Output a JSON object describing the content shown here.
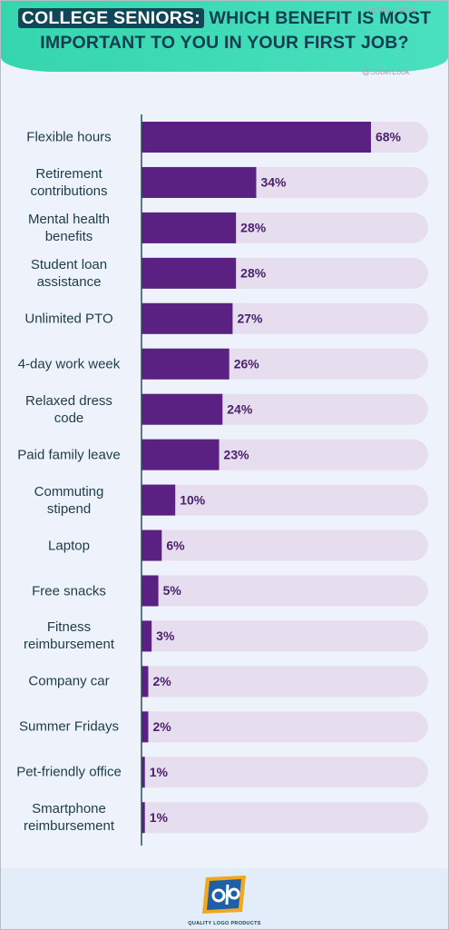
{
  "chart_data": {
    "type": "bar",
    "orientation": "horizontal",
    "title_highlight": "COLLEGE SENIORS:",
    "title": "WHICH BENEFIT IS MOST IMPORTANT TO YOU IN YOUR FIRST JOB?",
    "watermark": [
      "The Daily Shot",
      "@SoberLook"
    ],
    "brand": "QUALITY LOGO PRODUCTS",
    "categories": [
      "Flexible hours",
      "Retirement\ncontributions",
      "Mental health\nbenefits",
      "Student loan\nassistance",
      "Unlimited PTO",
      "4-day work week",
      "Relaxed dress\ncode",
      "Paid family leave",
      "Commuting\nstipend",
      "Laptop",
      "Free snacks",
      "Fitness\nreimbursement",
      "Company car",
      "Summer Fridays",
      "Pet-friendly office",
      "Smartphone\nreimbursement"
    ],
    "values": [
      68,
      34,
      28,
      28,
      27,
      26,
      24,
      23,
      10,
      6,
      5,
      3,
      2,
      2,
      1,
      1
    ],
    "value_labels": [
      "68%",
      "34%",
      "28%",
      "28%",
      "27%",
      "26%",
      "24%",
      "23%",
      "10%",
      "6%",
      "5%",
      "3%",
      "2%",
      "2%",
      "1%",
      "1%"
    ],
    "color": "#5b2182",
    "track_color": "#e6ddee"
  }
}
